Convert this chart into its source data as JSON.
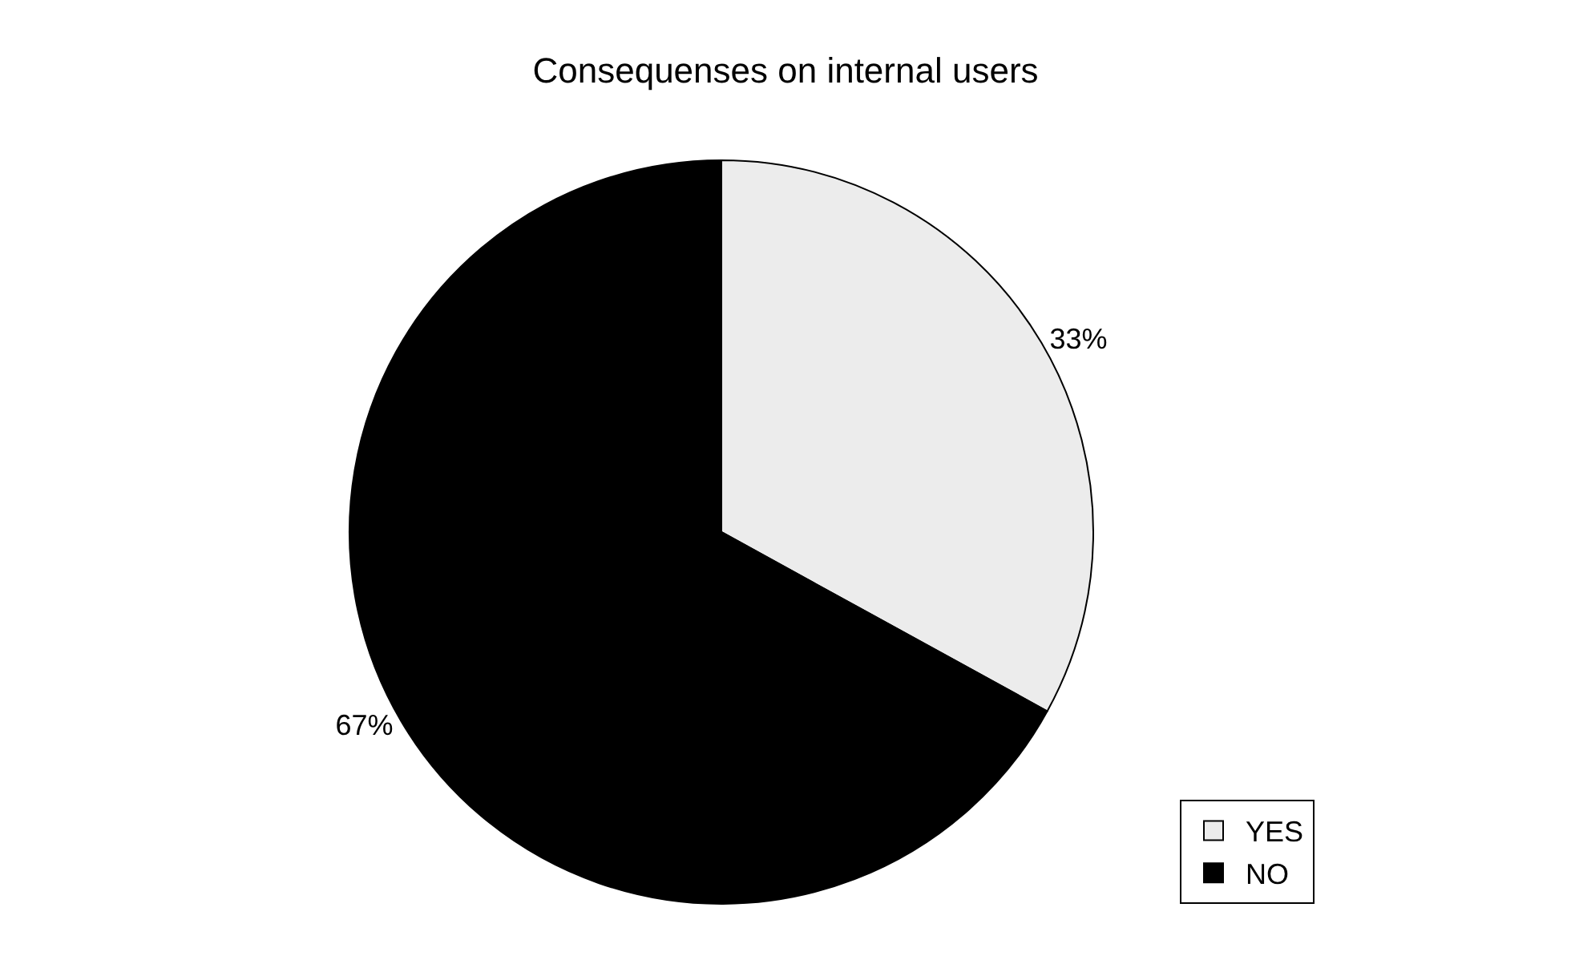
{
  "chart_data": {
    "type": "pie",
    "title": "Consequenses on internal users",
    "categories": [
      "YES",
      "NO"
    ],
    "values": [
      33,
      67
    ],
    "value_labels": [
      "33%",
      "67%"
    ],
    "colors": [
      "#ececec",
      "#000000"
    ],
    "legend": "bottom right"
  }
}
